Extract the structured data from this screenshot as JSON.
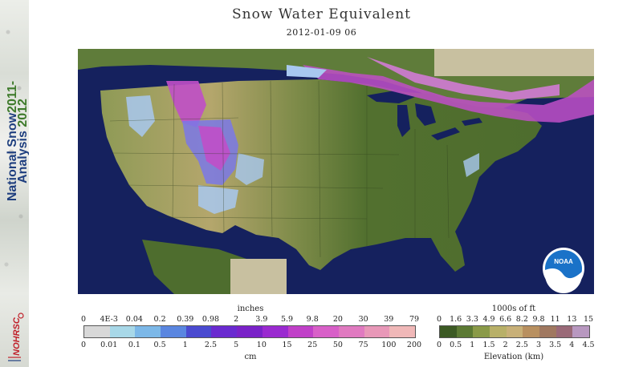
{
  "banner": {
    "title_line1": "National Snow",
    "title_line2": "Analysis",
    "year_line1": "2011-",
    "year_line2": "2012",
    "logo_text": "NOHRSC"
  },
  "header": {
    "title": "Snow Water Equivalent",
    "timestamp": "2012-01-09 06"
  },
  "map": {
    "noaa_logo_text": "NOAA",
    "colors": {
      "ocean": "#15215e",
      "no_data": "#c8c0a0",
      "land_low": "#4e6d2e",
      "land_mid": "#8c9a52",
      "land_high": "#b9a86e",
      "snow_light": "#a8c8f0",
      "snow_medium": "#7a78e8",
      "snow_heavy": "#c04fc8",
      "snow_deep": "#e07ae8"
    }
  },
  "legend_swe": {
    "units_top": "inches",
    "ticks_inches": [
      "0",
      "4E-3",
      "0.04",
      "0.2",
      "0.39",
      "0.98",
      "2",
      "3.9",
      "5.9",
      "9.8",
      "20",
      "30",
      "39",
      "79"
    ],
    "ticks_cm": [
      "0",
      "0.01",
      "0.1",
      "0.5",
      "1",
      "2.5",
      "5",
      "10",
      "15",
      "25",
      "50",
      "75",
      "100",
      "200"
    ],
    "units_bottom": "cm",
    "colors": [
      "#d8d8d8",
      "#a8d8e8",
      "#7cb8e8",
      "#5a86e0",
      "#4a4ad0",
      "#6a2ad0",
      "#7a22c8",
      "#9a2ad0",
      "#c040c8",
      "#d860c8",
      "#e07ac0",
      "#e898b8",
      "#f0b8b8"
    ]
  },
  "legend_elev": {
    "units_top": "1000s of ft",
    "ticks_ft": [
      "0",
      "1.6",
      "3.3",
      "4.9",
      "6.6",
      "8.2",
      "9.8",
      "11",
      "13",
      "15"
    ],
    "ticks_km": [
      "0",
      "0.5",
      "1",
      "1.5",
      "2",
      "2.5",
      "3",
      "3.5",
      "4",
      "4.5"
    ],
    "units_bottom": "Elevation (km)",
    "colors": [
      "#3c5a24",
      "#5c7a34",
      "#8a9a48",
      "#b8b068",
      "#c8b078",
      "#b89060",
      "#a07860",
      "#9a6a78",
      "#b898c0"
    ]
  }
}
